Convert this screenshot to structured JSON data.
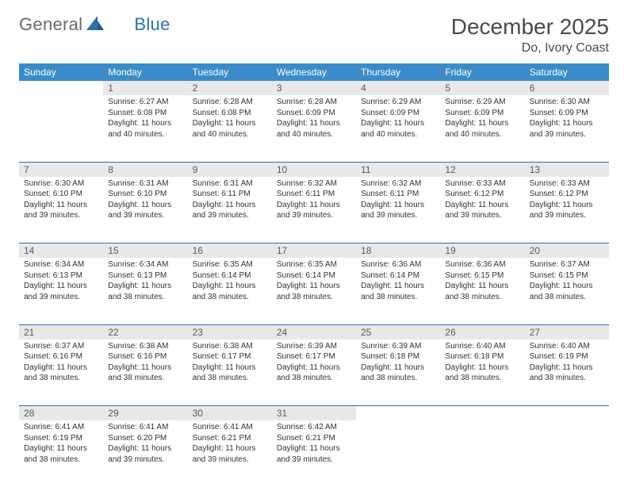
{
  "logo": {
    "text1": "General",
    "text2": "Blue"
  },
  "title": "December 2025",
  "location": "Do, Ivory Coast",
  "style": {
    "header_bg": "#3b8bc9",
    "header_fg": "#ffffff",
    "border_color": "#2c6fb0",
    "daynum_bg": "#e8e8e8",
    "body_font_size": 10,
    "title_font_size": 28
  },
  "weekdays": [
    "Sunday",
    "Monday",
    "Tuesday",
    "Wednesday",
    "Thursday",
    "Friday",
    "Saturday"
  ],
  "weeks": [
    [
      null,
      {
        "n": "1",
        "sunrise": "6:27 AM",
        "sunset": "6:08 PM",
        "daylight": "11 hours and 40 minutes."
      },
      {
        "n": "2",
        "sunrise": "6:28 AM",
        "sunset": "6:08 PM",
        "daylight": "11 hours and 40 minutes."
      },
      {
        "n": "3",
        "sunrise": "6:28 AM",
        "sunset": "6:09 PM",
        "daylight": "11 hours and 40 minutes."
      },
      {
        "n": "4",
        "sunrise": "6:29 AM",
        "sunset": "6:09 PM",
        "daylight": "11 hours and 40 minutes."
      },
      {
        "n": "5",
        "sunrise": "6:29 AM",
        "sunset": "6:09 PM",
        "daylight": "11 hours and 40 minutes."
      },
      {
        "n": "6",
        "sunrise": "6:30 AM",
        "sunset": "6:09 PM",
        "daylight": "11 hours and 39 minutes."
      }
    ],
    [
      {
        "n": "7",
        "sunrise": "6:30 AM",
        "sunset": "6:10 PM",
        "daylight": "11 hours and 39 minutes."
      },
      {
        "n": "8",
        "sunrise": "6:31 AM",
        "sunset": "6:10 PM",
        "daylight": "11 hours and 39 minutes."
      },
      {
        "n": "9",
        "sunrise": "6:31 AM",
        "sunset": "6:11 PM",
        "daylight": "11 hours and 39 minutes."
      },
      {
        "n": "10",
        "sunrise": "6:32 AM",
        "sunset": "6:11 PM",
        "daylight": "11 hours and 39 minutes."
      },
      {
        "n": "11",
        "sunrise": "6:32 AM",
        "sunset": "6:11 PM",
        "daylight": "11 hours and 39 minutes."
      },
      {
        "n": "12",
        "sunrise": "6:33 AM",
        "sunset": "6:12 PM",
        "daylight": "11 hours and 39 minutes."
      },
      {
        "n": "13",
        "sunrise": "6:33 AM",
        "sunset": "6:12 PM",
        "daylight": "11 hours and 39 minutes."
      }
    ],
    [
      {
        "n": "14",
        "sunrise": "6:34 AM",
        "sunset": "6:13 PM",
        "daylight": "11 hours and 39 minutes."
      },
      {
        "n": "15",
        "sunrise": "6:34 AM",
        "sunset": "6:13 PM",
        "daylight": "11 hours and 38 minutes."
      },
      {
        "n": "16",
        "sunrise": "6:35 AM",
        "sunset": "6:14 PM",
        "daylight": "11 hours and 38 minutes."
      },
      {
        "n": "17",
        "sunrise": "6:35 AM",
        "sunset": "6:14 PM",
        "daylight": "11 hours and 38 minutes."
      },
      {
        "n": "18",
        "sunrise": "6:36 AM",
        "sunset": "6:14 PM",
        "daylight": "11 hours and 38 minutes."
      },
      {
        "n": "19",
        "sunrise": "6:36 AM",
        "sunset": "6:15 PM",
        "daylight": "11 hours and 38 minutes."
      },
      {
        "n": "20",
        "sunrise": "6:37 AM",
        "sunset": "6:15 PM",
        "daylight": "11 hours and 38 minutes."
      }
    ],
    [
      {
        "n": "21",
        "sunrise": "6:37 AM",
        "sunset": "6:16 PM",
        "daylight": "11 hours and 38 minutes."
      },
      {
        "n": "22",
        "sunrise": "6:38 AM",
        "sunset": "6:16 PM",
        "daylight": "11 hours and 38 minutes."
      },
      {
        "n": "23",
        "sunrise": "6:38 AM",
        "sunset": "6:17 PM",
        "daylight": "11 hours and 38 minutes."
      },
      {
        "n": "24",
        "sunrise": "6:39 AM",
        "sunset": "6:17 PM",
        "daylight": "11 hours and 38 minutes."
      },
      {
        "n": "25",
        "sunrise": "6:39 AM",
        "sunset": "6:18 PM",
        "daylight": "11 hours and 38 minutes."
      },
      {
        "n": "26",
        "sunrise": "6:40 AM",
        "sunset": "6:18 PM",
        "daylight": "11 hours and 38 minutes."
      },
      {
        "n": "27",
        "sunrise": "6:40 AM",
        "sunset": "6:19 PM",
        "daylight": "11 hours and 38 minutes."
      }
    ],
    [
      {
        "n": "28",
        "sunrise": "6:41 AM",
        "sunset": "6:19 PM",
        "daylight": "11 hours and 38 minutes."
      },
      {
        "n": "29",
        "sunrise": "6:41 AM",
        "sunset": "6:20 PM",
        "daylight": "11 hours and 39 minutes."
      },
      {
        "n": "30",
        "sunrise": "6:41 AM",
        "sunset": "6:21 PM",
        "daylight": "11 hours and 39 minutes."
      },
      {
        "n": "31",
        "sunrise": "6:42 AM",
        "sunset": "6:21 PM",
        "daylight": "11 hours and 39 minutes."
      },
      null,
      null,
      null
    ]
  ],
  "labels": {
    "sunrise": "Sunrise:",
    "sunset": "Sunset:",
    "daylight": "Daylight:"
  }
}
